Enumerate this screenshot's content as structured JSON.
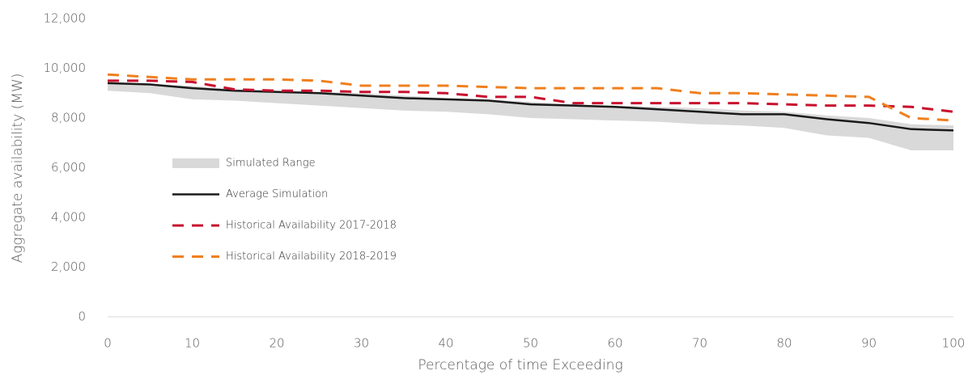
{
  "chart_data": {
    "type": "line",
    "x_label": "Percentage of time Exceeding",
    "y_label": "Aggregate availability (MW)",
    "x": [
      0,
      5,
      10,
      15,
      20,
      25,
      30,
      35,
      40,
      45,
      50,
      55,
      60,
      65,
      70,
      75,
      80,
      85,
      90,
      95,
      100
    ],
    "xlim": [
      0,
      100
    ],
    "xticks": [
      0,
      10,
      20,
      30,
      40,
      50,
      60,
      70,
      80,
      90,
      100
    ],
    "ylim": [
      0,
      12000
    ],
    "yticks": [
      0,
      {
        "value": 2000,
        "label": "2,000"
      },
      {
        "value": 4000,
        "label": "4,000"
      },
      {
        "value": 6000,
        "label": "6,000"
      },
      {
        "value": 8000,
        "label": "8,000"
      },
      {
        "value": 10000,
        "label": "10,000"
      },
      {
        "value": 12000,
        "label": "12,000"
      }
    ],
    "grid": false,
    "legend": "left",
    "series": [
      {
        "name": "Simulated Range",
        "type": "area",
        "color": "#d9d9d9",
        "upper": [
          9400,
          9350,
          9300,
          9150,
          9100,
          9050,
          9000,
          8900,
          8800,
          8750,
          8650,
          8550,
          8500,
          8450,
          8400,
          8300,
          8250,
          8100,
          8000,
          7750,
          7700
        ],
        "lower": [
          9100,
          9000,
          8750,
          8700,
          8600,
          8500,
          8400,
          8300,
          8250,
          8150,
          8000,
          7950,
          7900,
          7850,
          7750,
          7700,
          7600,
          7300,
          7200,
          6700,
          6700
        ]
      },
      {
        "name": "Average Simulation",
        "type": "solid",
        "color": "#1a1a1a",
        "values": [
          9400,
          9350,
          9200,
          9100,
          9050,
          9000,
          8900,
          8800,
          8750,
          8700,
          8550,
          8500,
          8450,
          8350,
          8250,
          8150,
          8150,
          7950,
          7800,
          7550,
          7500
        ]
      },
      {
        "name": "Historical Availability 2017-2018",
        "type": "dashed",
        "color": "#c8102e",
        "values": [
          9500,
          9500,
          9450,
          9150,
          9100,
          9100,
          9050,
          9050,
          9000,
          8850,
          8850,
          8600,
          8600,
          8600,
          8600,
          8600,
          8550,
          8500,
          8500,
          8450,
          8250
        ]
      },
      {
        "name": "Historical Availability 2018-2019",
        "type": "dashed",
        "color": "#f07f1e",
        "values": [
          9750,
          9650,
          9550,
          9550,
          9550,
          9500,
          9300,
          9300,
          9300,
          9250,
          9200,
          9200,
          9200,
          9200,
          9000,
          9000,
          8950,
          8900,
          8850,
          8000,
          7900
        ]
      }
    ]
  }
}
